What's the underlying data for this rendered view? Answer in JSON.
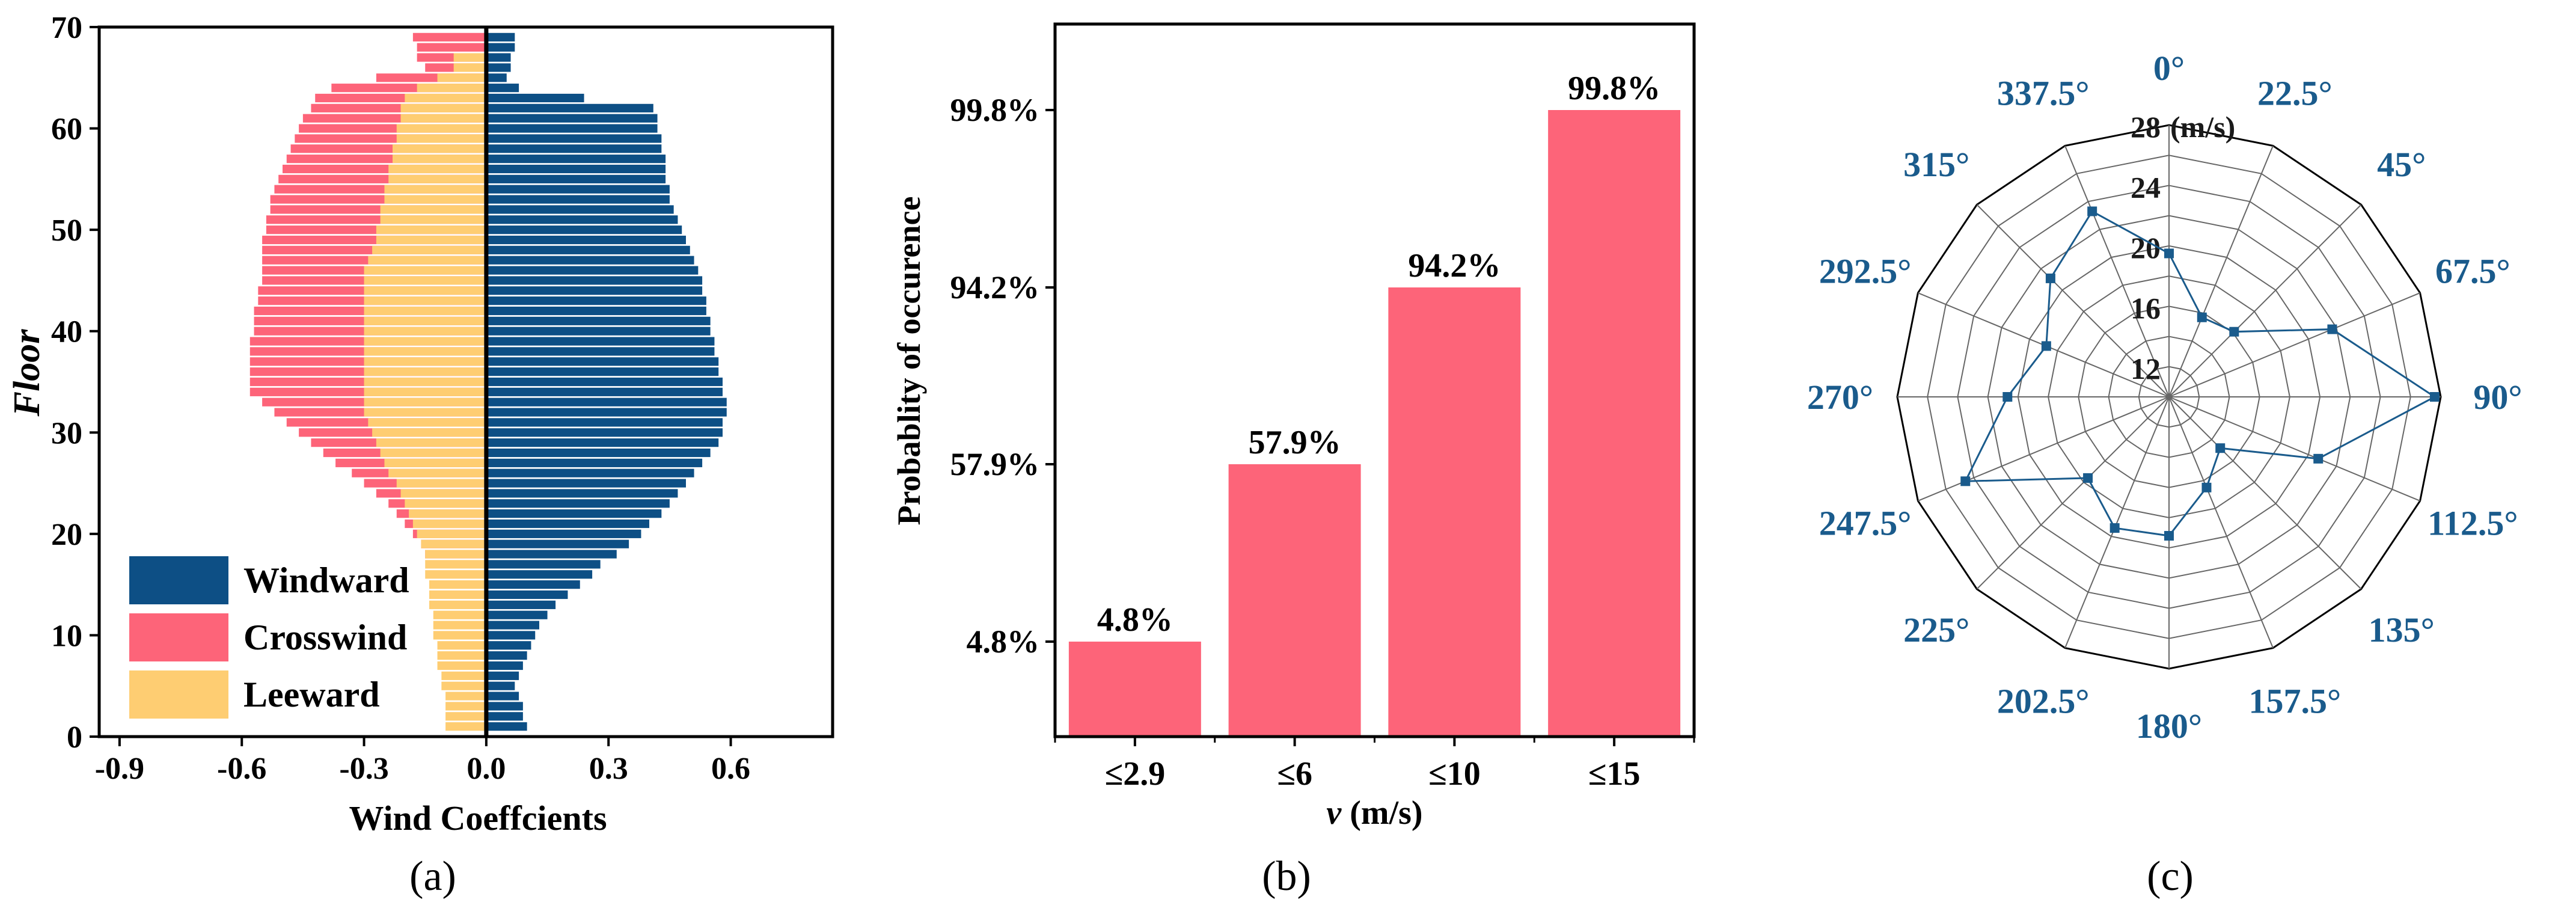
{
  "colors": {
    "windward": "#0d4f85",
    "crosswind": "#fd6479",
    "leeward": "#fecd72",
    "polar_line": "#1a5b8c",
    "axis": "#000000",
    "grid": "#555555"
  },
  "chart_data": [
    {
      "type": "bar",
      "orientation": "horizontal",
      "panel_label": "(a)",
      "xlabel": "Wind Coeffcients",
      "ylabel": "Floor",
      "xlim": [
        -0.95,
        0.85
      ],
      "ylim": [
        0,
        70
      ],
      "xticks": [
        -0.9,
        -0.6,
        -0.3,
        0.0,
        0.3,
        0.6
      ],
      "xtick_labels": [
        "-0.9",
        "-0.6",
        "-0.3",
        "0.0",
        "0.3",
        "0.6"
      ],
      "yticks": [
        0,
        10,
        20,
        30,
        40,
        50,
        60,
        70
      ],
      "ytick_labels": [
        "0",
        "10",
        "20",
        "30",
        "40",
        "50",
        "60",
        "70"
      ],
      "legend_position": "bottom-left",
      "series": [
        {
          "name": "Windward",
          "color": "#0d4f85",
          "floors": [
            1,
            2,
            3,
            4,
            5,
            6,
            7,
            8,
            9,
            10,
            11,
            12,
            13,
            14,
            15,
            16,
            17,
            18,
            19,
            20,
            21,
            22,
            23,
            24,
            25,
            26,
            27,
            28,
            29,
            30,
            31,
            32,
            33,
            34,
            35,
            36,
            37,
            38,
            39,
            40,
            41,
            42,
            43,
            44,
            45,
            46,
            47,
            48,
            49,
            50,
            51,
            52,
            53,
            54,
            55,
            56,
            57,
            58,
            59,
            60,
            61,
            62,
            63,
            64,
            65,
            66,
            67,
            68,
            69
          ],
          "values": [
            0.1,
            0.09,
            0.09,
            0.08,
            0.07,
            0.08,
            0.09,
            0.1,
            0.11,
            0.12,
            0.13,
            0.15,
            0.17,
            0.2,
            0.23,
            0.26,
            0.28,
            0.32,
            0.35,
            0.38,
            0.4,
            0.43,
            0.45,
            0.47,
            0.49,
            0.51,
            0.53,
            0.55,
            0.57,
            0.58,
            0.58,
            0.59,
            0.59,
            0.58,
            0.58,
            0.57,
            0.57,
            0.56,
            0.56,
            0.55,
            0.55,
            0.54,
            0.54,
            0.53,
            0.53,
            0.52,
            0.51,
            0.5,
            0.49,
            0.48,
            0.47,
            0.46,
            0.45,
            0.45,
            0.44,
            0.44,
            0.44,
            0.43,
            0.43,
            0.42,
            0.42,
            0.41,
            0.24,
            0.08,
            0.05,
            0.06,
            0.06,
            0.07,
            0.07
          ]
        },
        {
          "name": "Crosswind",
          "color": "#fd6479",
          "floors": [
            18,
            19,
            20,
            21,
            22,
            23,
            24,
            25,
            26,
            27,
            28,
            29,
            30,
            31,
            32,
            33,
            34,
            35,
            36,
            37,
            38,
            39,
            40,
            41,
            42,
            43,
            44,
            45,
            46,
            47,
            48,
            49,
            50,
            51,
            52,
            53,
            54,
            55,
            56,
            57,
            58,
            59,
            60,
            61,
            62,
            63,
            64,
            65,
            66,
            67,
            68,
            69
          ],
          "values": [
            -0.15,
            -0.16,
            -0.18,
            -0.2,
            -0.22,
            -0.24,
            -0.27,
            -0.3,
            -0.33,
            -0.37,
            -0.4,
            -0.43,
            -0.46,
            -0.49,
            -0.52,
            -0.55,
            -0.58,
            -0.58,
            -0.58,
            -0.58,
            -0.58,
            -0.58,
            -0.57,
            -0.57,
            -0.57,
            -0.56,
            -0.56,
            -0.55,
            -0.55,
            -0.55,
            -0.55,
            -0.55,
            -0.54,
            -0.54,
            -0.53,
            -0.53,
            -0.52,
            -0.51,
            -0.5,
            -0.49,
            -0.48,
            -0.47,
            -0.46,
            -0.45,
            -0.43,
            -0.42,
            -0.38,
            -0.27,
            -0.15,
            -0.17,
            -0.17,
            -0.18
          ]
        },
        {
          "name": "Leeward",
          "color": "#fecd72",
          "floors": [
            1,
            2,
            3,
            4,
            5,
            6,
            7,
            8,
            9,
            10,
            11,
            12,
            13,
            14,
            15,
            16,
            17,
            18,
            19,
            20,
            21,
            22,
            23,
            24,
            25,
            26,
            27,
            28,
            29,
            30,
            31,
            32,
            33,
            34,
            35,
            36,
            37,
            38,
            39,
            40,
            41,
            42,
            43,
            44,
            45,
            46,
            47,
            48,
            49,
            50,
            51,
            52,
            53,
            54,
            55,
            56,
            57,
            58,
            59,
            60,
            61,
            62,
            63,
            64,
            65,
            66,
            67
          ],
          "values": [
            -0.1,
            -0.1,
            -0.1,
            -0.1,
            -0.11,
            -0.11,
            -0.12,
            -0.12,
            -0.12,
            -0.13,
            -0.13,
            -0.13,
            -0.14,
            -0.14,
            -0.14,
            -0.15,
            -0.15,
            -0.15,
            -0.16,
            -0.17,
            -0.18,
            -0.19,
            -0.2,
            -0.21,
            -0.22,
            -0.24,
            -0.25,
            -0.26,
            -0.27,
            -0.28,
            -0.29,
            -0.3,
            -0.3,
            -0.3,
            -0.3,
            -0.3,
            -0.3,
            -0.3,
            -0.3,
            -0.3,
            -0.3,
            -0.3,
            -0.3,
            -0.3,
            -0.3,
            -0.3,
            -0.29,
            -0.28,
            -0.27,
            -0.27,
            -0.26,
            -0.26,
            -0.25,
            -0.25,
            -0.24,
            -0.24,
            -0.23,
            -0.23,
            -0.22,
            -0.22,
            -0.21,
            -0.21,
            -0.2,
            -0.17,
            -0.12,
            -0.08,
            -0.08
          ]
        }
      ]
    },
    {
      "type": "bar",
      "panel_label": "(b)",
      "xlabel_italic": "v",
      "xlabel_rest": " (m/s)",
      "ylabel": "Probablity of occurence",
      "categories": [
        "≤2.9",
        "≤6",
        "≤10",
        "≤15"
      ],
      "values": [
        4.8,
        57.9,
        94.2,
        99.8
      ],
      "data_labels": [
        "4.8%",
        "57.9%",
        "94.2%",
        "99.8%"
      ],
      "ytick_labels": [
        "4.8%",
        "57.9%",
        "94.2%",
        "99.8%"
      ],
      "bar_color": "#fd6479"
    },
    {
      "type": "polar_line",
      "panel_label": "(c)",
      "radial_unit_label": "(m/s)",
      "radial_min": 10,
      "radial_max": 28,
      "radial_ticks": [
        12,
        16,
        20,
        24,
        28
      ],
      "radial_tick_labels": [
        "12",
        "16",
        "20",
        "24",
        "28"
      ],
      "angles": [
        0,
        22.5,
        45,
        67.5,
        90,
        112.5,
        135,
        157.5,
        180,
        202.5,
        225,
        247.5,
        270,
        292.5,
        315,
        337.5
      ],
      "angle_labels": [
        "0°",
        "22.5°",
        "45°",
        "67.5°",
        "90°",
        "112.5°",
        "135°",
        "157.5°",
        "180°",
        "202.5°",
        "225°",
        "247.5°",
        "270°",
        "292.5°",
        "315°",
        "337.5°"
      ],
      "values": [
        19.5,
        15.7,
        16.1,
        21.7,
        27.6,
        20.7,
        14.8,
        16.5,
        19.2,
        19.4,
        17.6,
        24.6,
        20.7,
        18.8,
        21.1,
        23.3
      ],
      "line_color": "#1a5b8c"
    }
  ]
}
